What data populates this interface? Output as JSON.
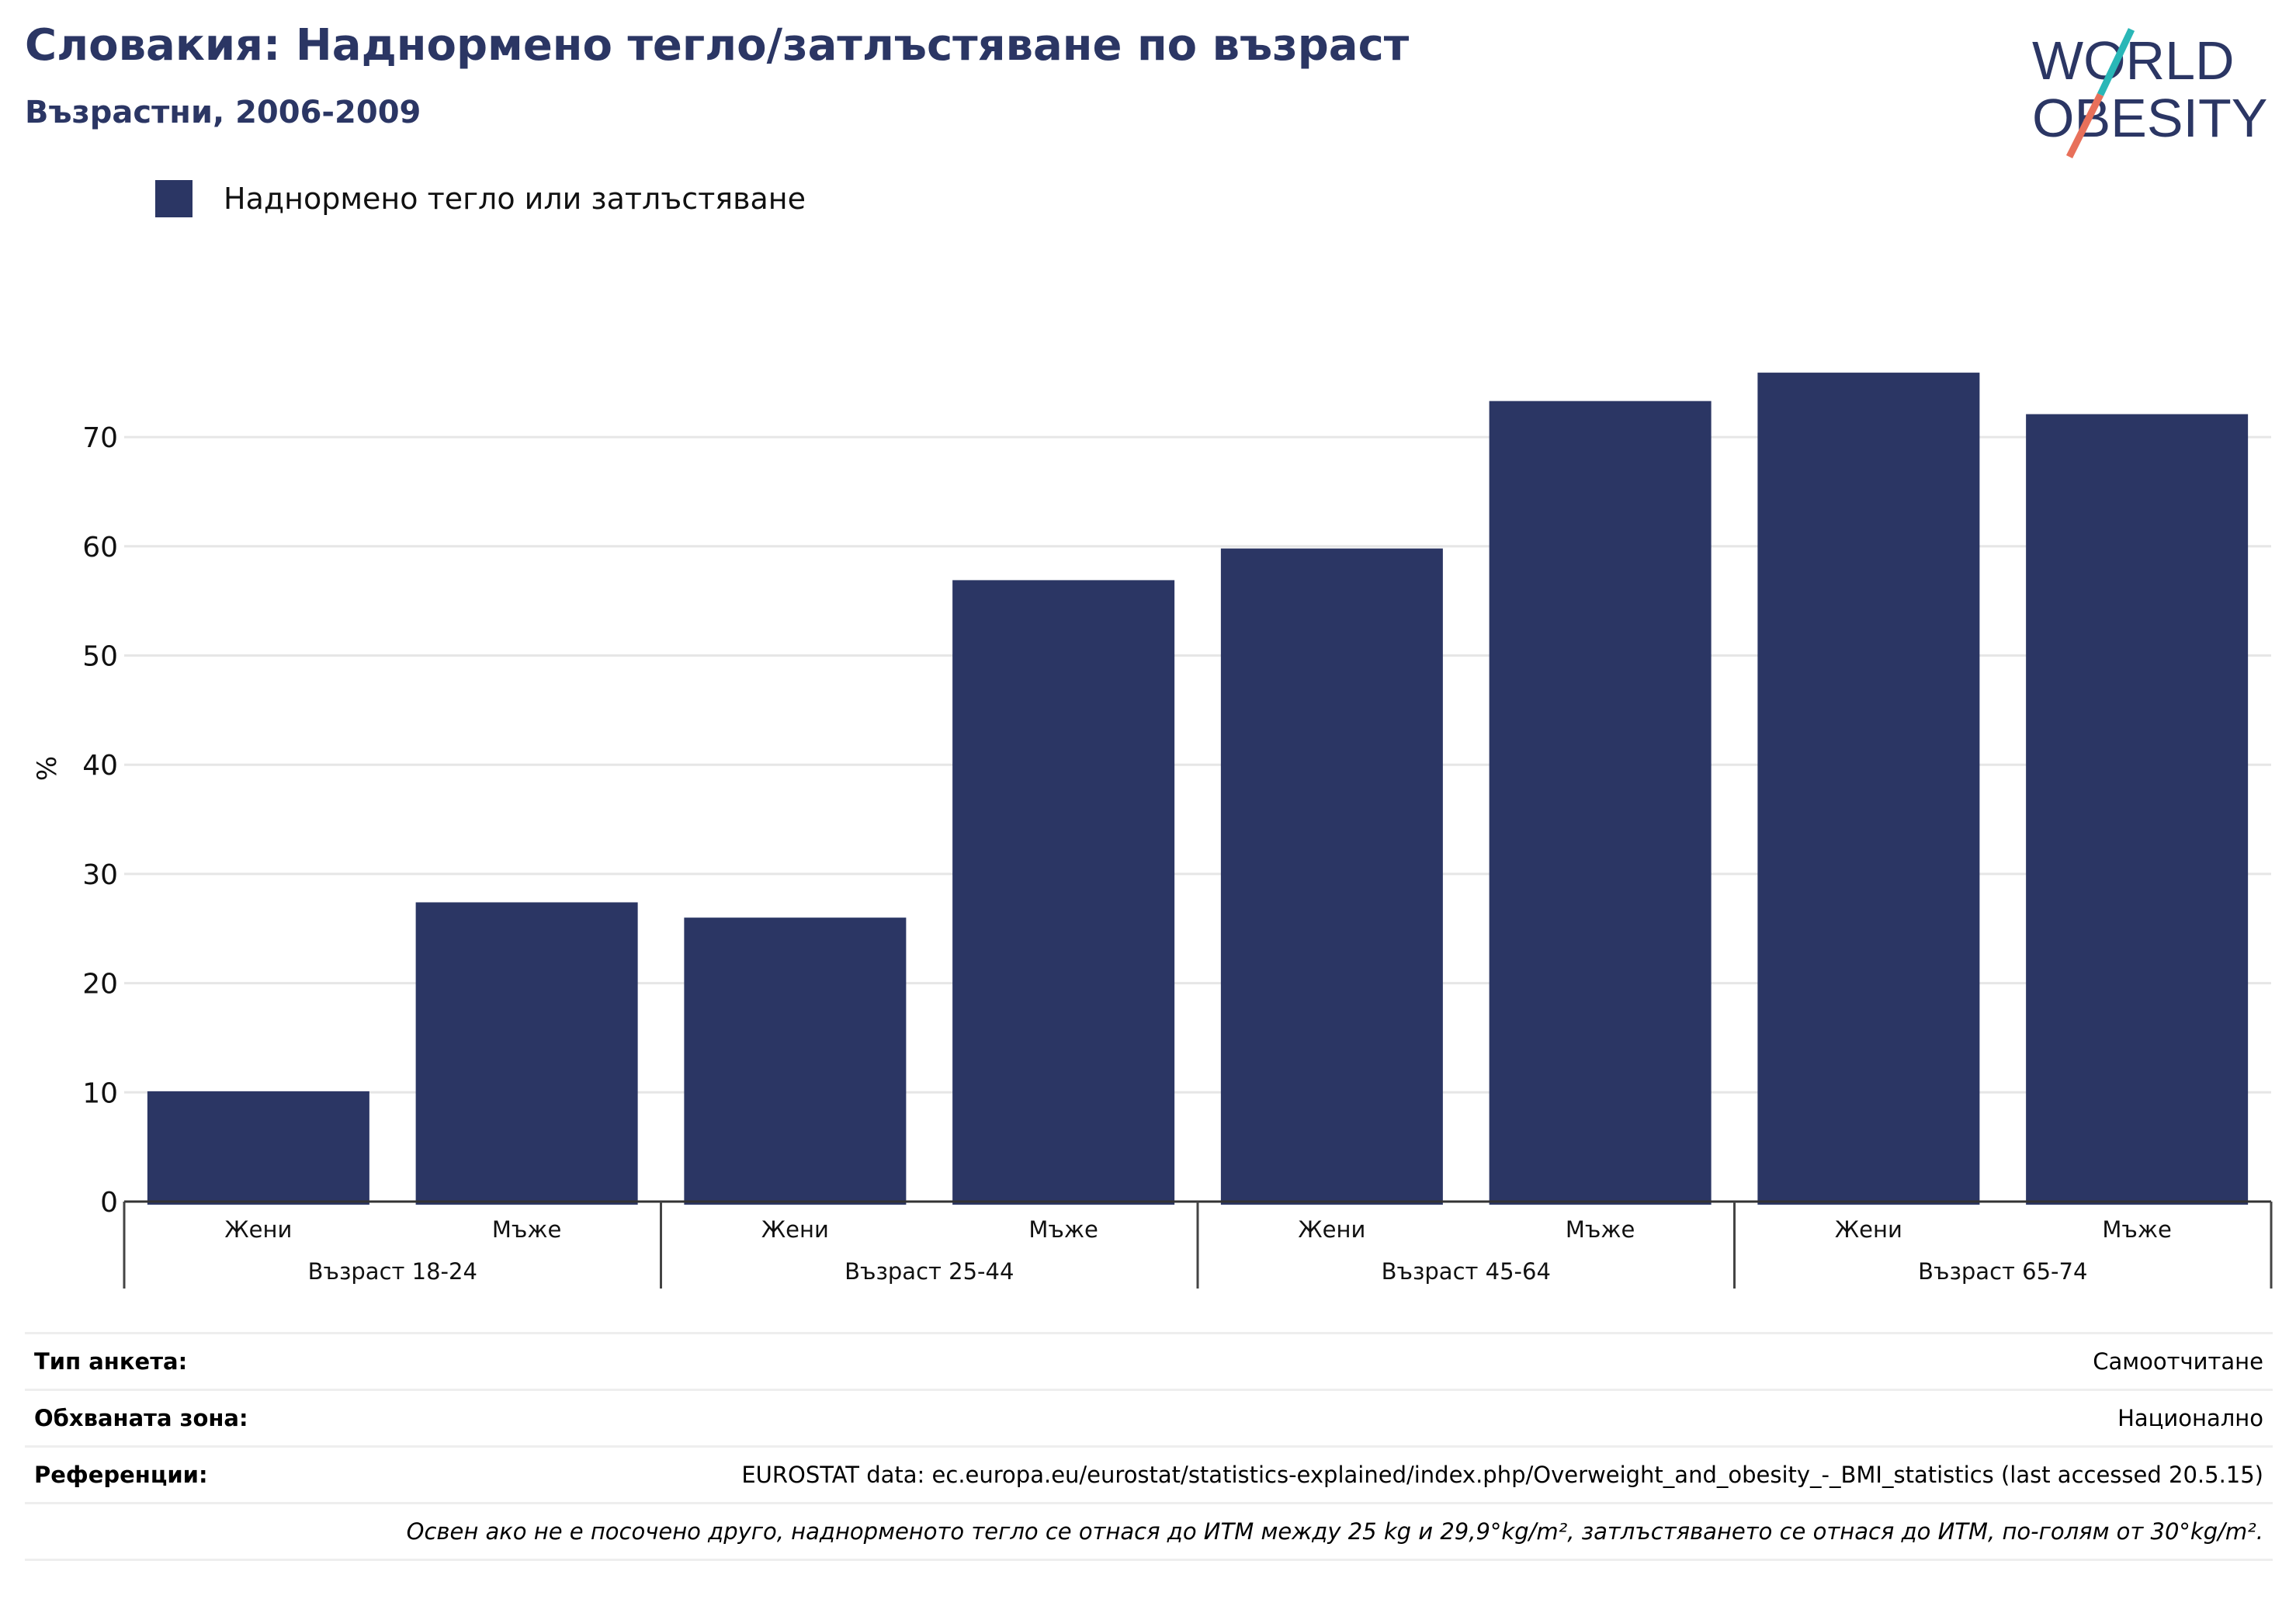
{
  "header": {
    "title": "Словакия: Наднормено тегло/затлъстяване по възраст",
    "subtitle": "Възрастни, 2006-2009"
  },
  "logo": {
    "line1": "WORLD",
    "line2": "OBESITY",
    "colors": {
      "text": "#2b3664",
      "slash_top": "#2ab7b7",
      "slash_bottom": "#e8705a"
    }
  },
  "legend": {
    "label": "Наднормено тегло или затлъстяване",
    "color": "#2b3664"
  },
  "chart_data": {
    "type": "bar",
    "ylabel": "%",
    "ylim": [
      0,
      80
    ],
    "yticks": [
      0,
      10,
      20,
      30,
      40,
      50,
      60,
      70
    ],
    "grid": true,
    "legend_position": "top-left",
    "bar_color": "#2b3664",
    "groups": [
      {
        "label": "Възраст 18-24",
        "categories": [
          "Жени",
          "Мъже"
        ],
        "values": [
          10.1,
          27.4
        ]
      },
      {
        "label": "Възраст 25-44",
        "categories": [
          "Жени",
          "Мъже"
        ],
        "values": [
          26.0,
          56.9
        ]
      },
      {
        "label": "Възраст 45-64",
        "categories": [
          "Жени",
          "Мъже"
        ],
        "values": [
          59.8,
          73.3
        ]
      },
      {
        "label": "Възраст 65-74",
        "categories": [
          "Жени",
          "Мъже"
        ],
        "values": [
          75.9,
          72.1
        ]
      }
    ],
    "series": [
      {
        "name": "Наднормено тегло или затлъстяване"
      }
    ]
  },
  "meta": {
    "rows": [
      {
        "key": "Тип анкета:",
        "value": "Самоотчитане"
      },
      {
        "key": "Обхваната зона:",
        "value": "Национално"
      },
      {
        "key": "Референции:",
        "value": "EUROSTAT data: ec.europa.eu/eurostat/statistics-explained/index.php/Overweight_and_obesity_-_BMI_statistics (last accessed 20.5.15)"
      }
    ],
    "note": "Освен ако не е посочено друго, наднорменото тегло се отнася до ИТМ между 25 kg и 29,9°kg/m², затлъстяването се отнася до ИТМ, по-голям от 30°kg/m²."
  }
}
